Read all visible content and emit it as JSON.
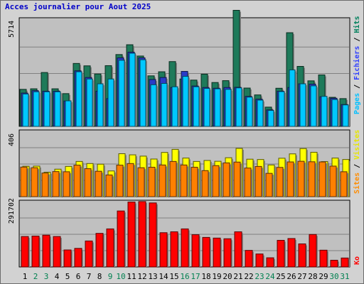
{
  "title": "Acces journalier pour Aout 2025",
  "chart_data": [
    {
      "type": "bar",
      "panel": "top",
      "ymax_label": "5714",
      "legend": [
        "Pages",
        "Fichiers",
        "Hits"
      ],
      "legend_colors": [
        "#00c0ff",
        "#3040ff",
        "#00805c"
      ],
      "categories": [
        "1",
        "2",
        "3",
        "4",
        "5",
        "6",
        "7",
        "8",
        "9",
        "10",
        "11",
        "12",
        "13",
        "14",
        "15",
        "16",
        "17",
        "18",
        "19",
        "20",
        "21",
        "22",
        "23",
        "24",
        "25",
        "26",
        "27",
        "28",
        "29",
        "30",
        "31"
      ],
      "series": [
        {
          "name": "Hits",
          "color": "#1e7a5a",
          "values": [
            2000,
            2030,
            2910,
            2030,
            1770,
            3400,
            3270,
            2830,
            3280,
            3880,
            4410,
            3800,
            2730,
            2950,
            3500,
            2560,
            2500,
            2820,
            2370,
            2470,
            6270,
            2070,
            1700,
            1040,
            2060,
            5060,
            3240,
            2460,
            2780,
            1570,
            1500
          ]
        },
        {
          "name": "Fichiers",
          "color": "#2a3cc8",
          "values": [
            1800,
            1930,
            1900,
            1900,
            1370,
            3000,
            2640,
            1900,
            1500,
            3700,
            4010,
            3700,
            2530,
            2640,
            2100,
            2970,
            2180,
            2100,
            2060,
            2100,
            2110,
            1620,
            1470,
            890,
            1900,
            2100,
            2300,
            2280,
            1600,
            1520,
            1180
          ]
        },
        {
          "name": "Pages",
          "color": "#00c8ff",
          "values": [
            1750,
            1870,
            1870,
            1870,
            1380,
            2950,
            2560,
            2300,
            2560,
            3570,
            3950,
            3600,
            2250,
            2320,
            2140,
            2700,
            2140,
            2050,
            2030,
            2000,
            2080,
            1580,
            1420,
            860,
            1880,
            3050,
            2300,
            2190,
            1620,
            1450,
            1160
          ]
        }
      ]
    },
    {
      "type": "bar",
      "panel": "middle",
      "ymax_label": "406",
      "legend": [
        "Sites",
        "Visites"
      ],
      "legend_colors": [
        "#ff8c00",
        "#e6e600"
      ],
      "series": [
        {
          "name": "Visites",
          "color": "#ffff00",
          "values": [
            189,
            190,
            152,
            171,
            188,
            219,
            206,
            202,
            160,
            267,
            260,
            252,
            234,
            275,
            294,
            240,
            219,
            225,
            220,
            242,
            300,
            233,
            231,
            197,
            239,
            266,
            299,
            276,
            218,
            240,
            231
          ]
        },
        {
          "name": "Sites",
          "color": "#ff8000",
          "values": [
            184,
            180,
            147,
            156,
            155,
            196,
            174,
            158,
            135,
            196,
            206,
            180,
            183,
            197,
            219,
            197,
            183,
            162,
            193,
            210,
            215,
            178,
            188,
            145,
            182,
            216,
            220,
            217,
            216,
            190,
            155
          ]
        }
      ]
    },
    {
      "type": "bar",
      "panel": "bottom",
      "ymax_label": "291702",
      "legend": [
        "Ko"
      ],
      "legend_colors": [
        "#ff0000"
      ],
      "series": [
        {
          "name": "Ko",
          "color": "#ff0000",
          "values": [
            136000,
            138000,
            142000,
            136000,
            76000,
            83000,
            116000,
            150000,
            170000,
            250000,
            290000,
            292000,
            286000,
            153000,
            157000,
            170000,
            144000,
            132000,
            129000,
            126000,
            157000,
            74000,
            58000,
            41000,
            119000,
            127000,
            103000,
            145000,
            75000,
            30000,
            40000
          ]
        }
      ]
    }
  ],
  "x_label_colors": {
    "weekday": "#000000",
    "weekend": "#008050"
  },
  "weekend_days": [
    2,
    3,
    9,
    10,
    16,
    17,
    23,
    24,
    30,
    31
  ]
}
